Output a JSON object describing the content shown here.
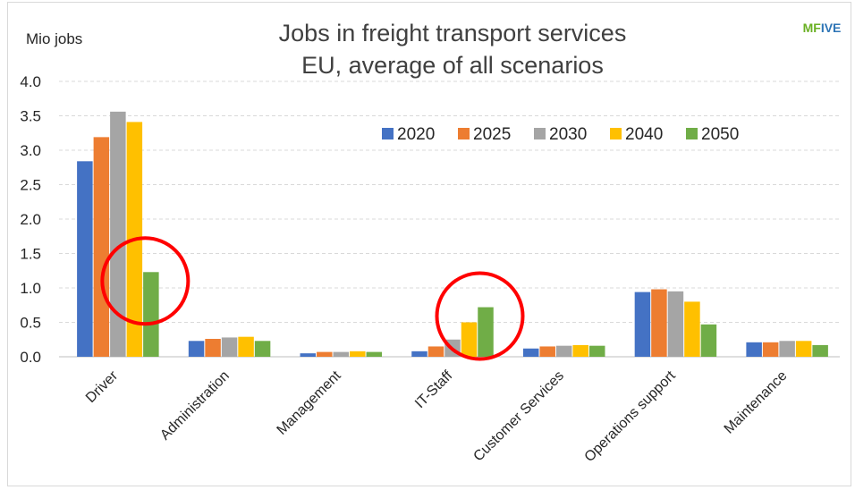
{
  "logo": {
    "part1": "MF",
    "part2": "IVE",
    "color1": "#6ab023",
    "color2": "#2e75b6"
  },
  "chart_data": {
    "type": "bar",
    "title": "Jobs in freight transport services",
    "subtitle": "EU, average of all scenarios",
    "ylabel": "Mio jobs",
    "xlabel": "",
    "ylim": [
      0,
      4.0
    ],
    "yticks": [
      "4.0",
      "3.5",
      "3.0",
      "2.5",
      "2.0",
      "1.5",
      "1.0",
      "0.5",
      "0.0"
    ],
    "grid": true,
    "legend_position": "top-right",
    "categories": [
      "Driver",
      "Administration",
      "Management",
      "IT-Staff",
      "Customer Services",
      "Operations support",
      "Maintenance"
    ],
    "series": [
      {
        "name": "2020",
        "color": "#4472c4",
        "values": [
          2.84,
          0.23,
          0.05,
          0.08,
          0.12,
          0.94,
          0.21
        ]
      },
      {
        "name": "2025",
        "color": "#ed7d31",
        "values": [
          3.19,
          0.26,
          0.07,
          0.15,
          0.15,
          0.98,
          0.21
        ]
      },
      {
        "name": "2030",
        "color": "#a5a5a5",
        "values": [
          3.56,
          0.28,
          0.07,
          0.25,
          0.16,
          0.95,
          0.23
        ]
      },
      {
        "name": "2040",
        "color": "#ffc000",
        "values": [
          3.41,
          0.29,
          0.08,
          0.5,
          0.17,
          0.8,
          0.23
        ]
      },
      {
        "name": "2050",
        "color": "#70ad47",
        "values": [
          1.23,
          0.23,
          0.07,
          0.72,
          0.16,
          0.47,
          0.17
        ]
      }
    ],
    "highlight_circles": [
      {
        "category": "Driver",
        "series": "2050",
        "color": "#ff0000"
      },
      {
        "category": "IT-Staff",
        "series": "2050",
        "color": "#ff0000"
      }
    ]
  }
}
